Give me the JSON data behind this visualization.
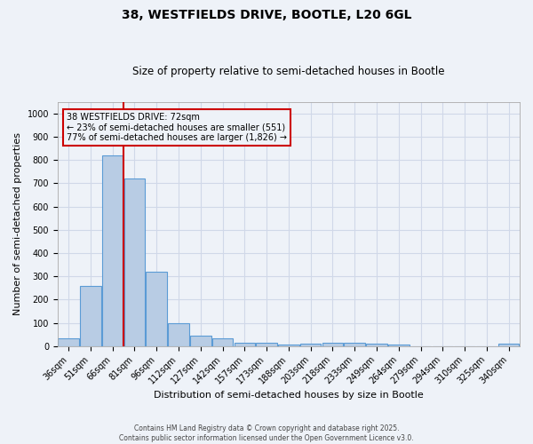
{
  "title": "38, WESTFIELDS DRIVE, BOOTLE, L20 6GL",
  "subtitle": "Size of property relative to semi-detached houses in Bootle",
  "xlabel": "Distribution of semi-detached houses by size in Bootle",
  "ylabel": "Number of semi-detached properties",
  "categories": [
    "36sqm",
    "51sqm",
    "66sqm",
    "81sqm",
    "96sqm",
    "112sqm",
    "127sqm",
    "142sqm",
    "157sqm",
    "173sqm",
    "188sqm",
    "203sqm",
    "218sqm",
    "233sqm",
    "249sqm",
    "264sqm",
    "279sqm",
    "294sqm",
    "310sqm",
    "325sqm",
    "340sqm"
  ],
  "values": [
    32,
    258,
    820,
    722,
    320,
    100,
    45,
    35,
    15,
    15,
    8,
    12,
    13,
    14,
    12,
    8,
    0,
    0,
    0,
    0,
    10
  ],
  "bar_color": "#b8cce4",
  "bar_edge_color": "#5b9bd5",
  "grid_color": "#d0d8e8",
  "background_color": "#eef2f8",
  "property_size": 72,
  "property_bin_index": 2.5,
  "vline_color": "#cc0000",
  "annotation_text": "38 WESTFIELDS DRIVE: 72sqm\n← 23% of semi-detached houses are smaller (551)\n77% of semi-detached houses are larger (1,826) →",
  "annotation_box_color": "#cc0000",
  "footer_line1": "Contains HM Land Registry data © Crown copyright and database right 2025.",
  "footer_line2": "Contains public sector information licensed under the Open Government Licence v3.0.",
  "ylim": [
    0,
    1050
  ],
  "yticks": [
    0,
    100,
    200,
    300,
    400,
    500,
    600,
    700,
    800,
    900,
    1000
  ],
  "title_fontsize": 10,
  "subtitle_fontsize": 8.5,
  "xlabel_fontsize": 8,
  "ylabel_fontsize": 8,
  "tick_fontsize": 7,
  "annot_fontsize": 7
}
